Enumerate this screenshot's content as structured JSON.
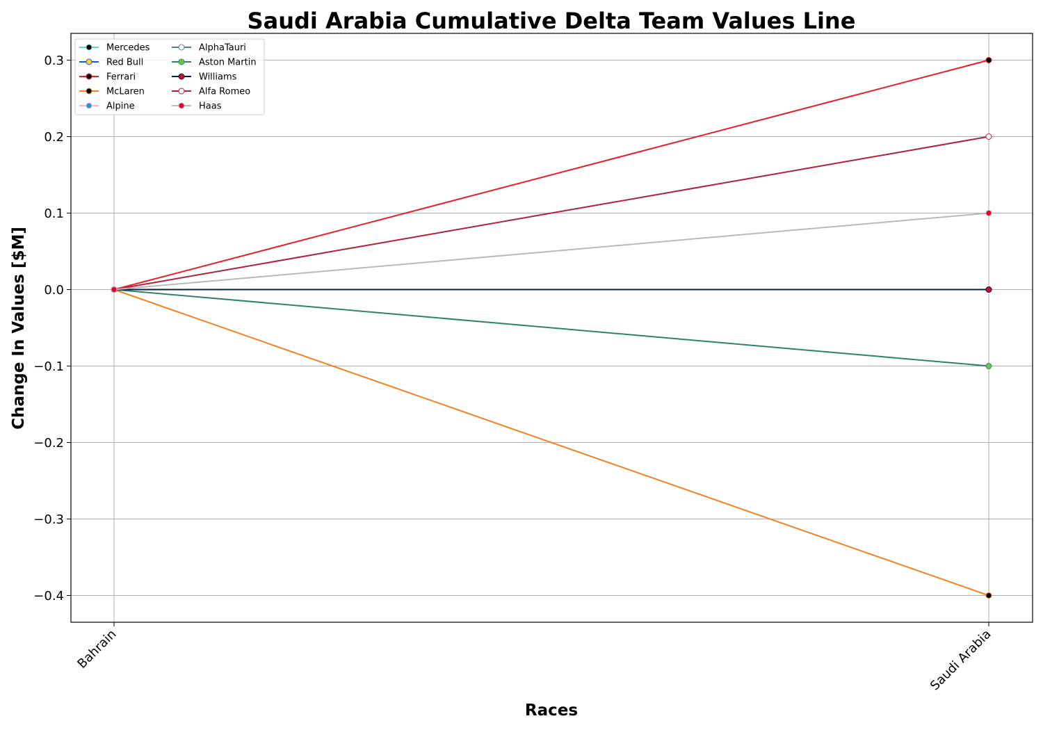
{
  "chart_data": {
    "type": "line",
    "title": "Saudi Arabia Cumulative Delta Team Values Line",
    "xlabel": "Races",
    "ylabel": "Change In Values [$M]",
    "categories": [
      "Bahrain",
      "Saudi Arabia"
    ],
    "ylim": [
      -0.435,
      0.335
    ],
    "yticks": [
      {
        "value": 0.3,
        "label": "0.3"
      },
      {
        "value": 0.2,
        "label": "0.2"
      },
      {
        "value": 0.1,
        "label": "0.1"
      },
      {
        "value": 0.0,
        "label": "0.0"
      },
      {
        "value": -0.1,
        "label": "−0.1"
      },
      {
        "value": -0.2,
        "label": "−0.2"
      },
      {
        "value": -0.3,
        "label": "−0.3"
      },
      {
        "value": -0.4,
        "label": "−0.4"
      }
    ],
    "grid": true,
    "legend_position": "top-left",
    "legend_columns": 2,
    "series": [
      {
        "name": "Mercedes",
        "values": [
          0.0,
          0.0
        ],
        "line_color": "#6CD3BF",
        "marker_face": "#000000",
        "marker_edge": "#6CD3BF"
      },
      {
        "name": "Red Bull",
        "values": [
          0.0,
          0.0
        ],
        "line_color": "#1E5BC6",
        "marker_face": "#FFD12E",
        "marker_edge": "#1E5BC6"
      },
      {
        "name": "Ferrari",
        "values": [
          0.0,
          0.3
        ],
        "line_color": "#ED1C24",
        "marker_face": "#000000",
        "marker_edge": "#ED1C24"
      },
      {
        "name": "McLaren",
        "values": [
          0.0,
          -0.4
        ],
        "line_color": "#F58020",
        "marker_face": "#000000",
        "marker_edge": "#F58020"
      },
      {
        "name": "Alpine",
        "values": [
          0.0,
          0.0
        ],
        "line_color": "#F5B4D8",
        "marker_face": "#2293D1",
        "marker_edge": "#F5B4D8"
      },
      {
        "name": "AlphaTauri",
        "values": [
          0.0,
          0.0
        ],
        "line_color": "#4E7C9B",
        "marker_face": "#FFFFFF",
        "marker_edge": "#4E7C9B"
      },
      {
        "name": "Aston Martin",
        "values": [
          0.0,
          -0.1
        ],
        "line_color": "#2D826D",
        "marker_face": "#6CC24A",
        "marker_edge": "#2D826D"
      },
      {
        "name": "Williams",
        "values": [
          0.0,
          0.0
        ],
        "line_color": "#0A1E3C",
        "marker_face": "#C8102E",
        "marker_edge": "#0A1E3C"
      },
      {
        "name": "Alfa Romeo",
        "values": [
          0.0,
          0.2
        ],
        "line_color": "#B12039",
        "marker_face": "#FFFFFF",
        "marker_edge": "#B12039"
      },
      {
        "name": "Haas",
        "values": [
          0.0,
          0.1
        ],
        "line_color": "#B6BABD",
        "marker_face": "#E6002B",
        "marker_edge": "#B6BABD"
      }
    ]
  }
}
